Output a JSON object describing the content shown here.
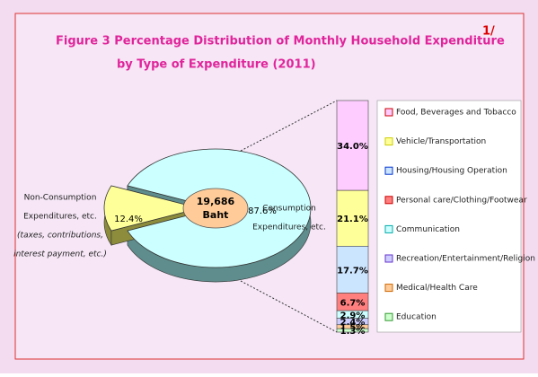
{
  "title": [
    "Figure  3   Percentage Distribution of Monthly Household Expenditure",
    "by Type of Expenditure (2011)"
  ],
  "footnote_mark": "1/",
  "chart_data": [
    {
      "type": "pie",
      "labels": [
        [
          "Consumption",
          "Expenditures, etc."
        ],
        [
          "Non-Consumption",
          "Expenditures, etc.",
          "(taxes, contributions,",
          "interest payment, etc.)"
        ]
      ],
      "values": [
        87.6,
        12.4
      ],
      "value_labels": [
        "87.6%",
        "12.4%"
      ],
      "colors": [
        "#ccffff",
        "#ffff99"
      ],
      "side_colors": [
        "#5f8c8c",
        "#8c8c3c"
      ],
      "center_label": [
        "19,686",
        "Baht"
      ],
      "center_color": "#ffcc99"
    },
    {
      "type": "stacked_bar",
      "categories": [
        "Food, Beverages and Tobacco",
        "Vehicle/Transportation",
        "Housing/Housing Operation",
        "Personal care/Clothing/Footwear",
        "Communication",
        "Recreation/Entertainment/Religion",
        "Medical/Health Care",
        "Education"
      ],
      "values": [
        34.0,
        21.1,
        17.7,
        6.7,
        2.9,
        2.4,
        1.5,
        1.3
      ],
      "value_labels": [
        "34.0%",
        "21.1%",
        "17.7%",
        "6.7%",
        "2.9%",
        "2.4%",
        "1.5%",
        "1.3%"
      ],
      "colors": [
        "#ffccff",
        "#ffff99",
        "#cce5ff",
        "#ff7f7f",
        "#ccffff",
        "#ccccff",
        "#ffcc99",
        "#ccffcc"
      ],
      "legend_borders": [
        "#cc0000",
        "#cccc00",
        "#0033cc",
        "#cc0000",
        "#00aaaa",
        "#6633cc",
        "#cc6600",
        "#339933"
      ]
    }
  ]
}
